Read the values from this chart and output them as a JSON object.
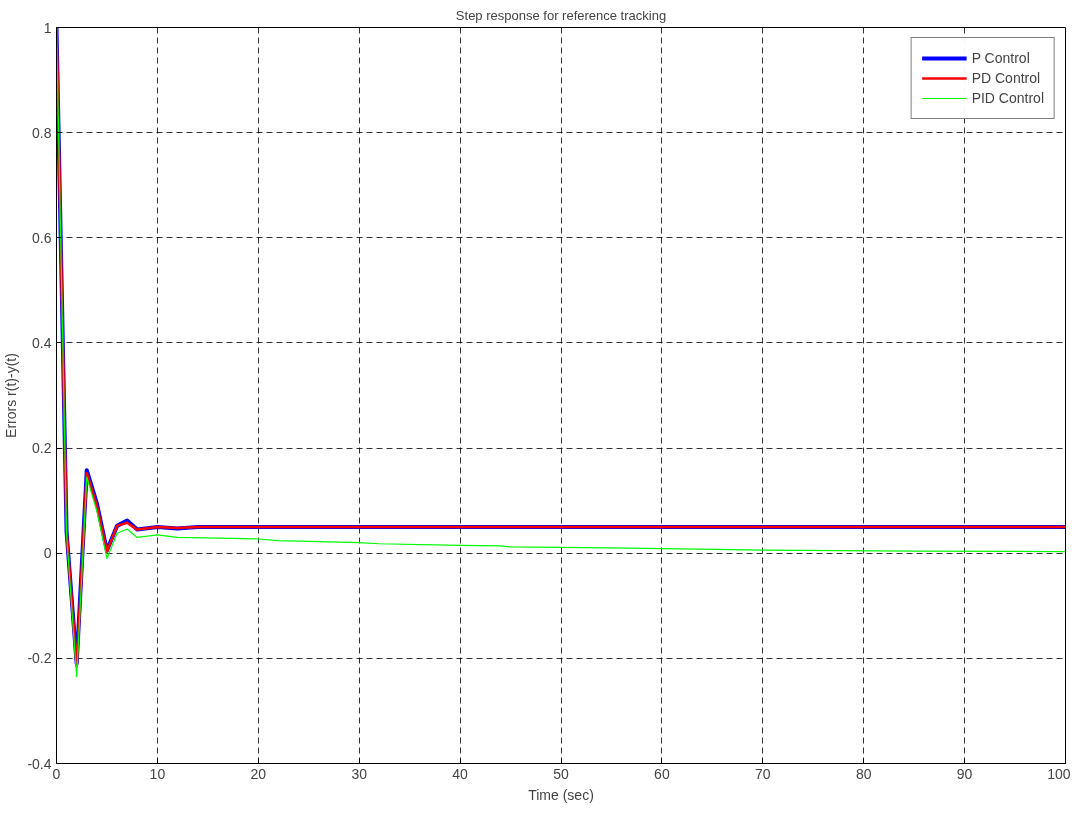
{
  "chart_data": {
    "type": "line",
    "title": "Step response for reference tracking",
    "xlabel": "Time (sec)",
    "ylabel": "Errors r(t)-y(t)",
    "xlim": [
      0,
      100
    ],
    "ylim": [
      -0.4,
      1
    ],
    "xticks": [
      0,
      10,
      20,
      30,
      40,
      50,
      60,
      70,
      80,
      90,
      100
    ],
    "yticks": [
      -0.4,
      -0.2,
      0,
      0.2,
      0.4,
      0.6,
      0.8,
      1
    ],
    "grid": true,
    "legend": "top right",
    "line_style": "solid",
    "series": [
      {
        "name": "P Control",
        "color": "#0000ff",
        "x": [
          0,
          1,
          2,
          3,
          4,
          5,
          6,
          7,
          8,
          10,
          12,
          14,
          100
        ],
        "values": [
          1,
          0.04,
          -0.21,
          0.158,
          0.095,
          0.005,
          0.052,
          0.062,
          0.045,
          0.05,
          0.047,
          0.05,
          0.05
        ]
      },
      {
        "name": "PD Control",
        "color": "#ff0000",
        "x": [
          0,
          1,
          2,
          3,
          4,
          5,
          6,
          7,
          8,
          10,
          12,
          14,
          100
        ],
        "values": [
          1,
          0.04,
          -0.215,
          0.152,
          0.09,
          0.003,
          0.052,
          0.058,
          0.045,
          0.05,
          0.048,
          0.05,
          0.05
        ]
      },
      {
        "name": "PID Control",
        "color": "#00ff00",
        "x": [
          0,
          1,
          2,
          3,
          4,
          5,
          6,
          7,
          8,
          10,
          12,
          15,
          20,
          22,
          30,
          32,
          40,
          44,
          45,
          55,
          67,
          70,
          85,
          100
        ],
        "values": [
          1,
          0.035,
          -0.235,
          0.145,
          0.08,
          -0.01,
          0.038,
          0.046,
          0.03,
          0.035,
          0.03,
          0.029,
          0.027,
          0.024,
          0.02,
          0.018,
          0.015,
          0.014,
          0.012,
          0.01,
          0.007,
          0.006,
          0.004,
          0.003
        ]
      }
    ]
  }
}
